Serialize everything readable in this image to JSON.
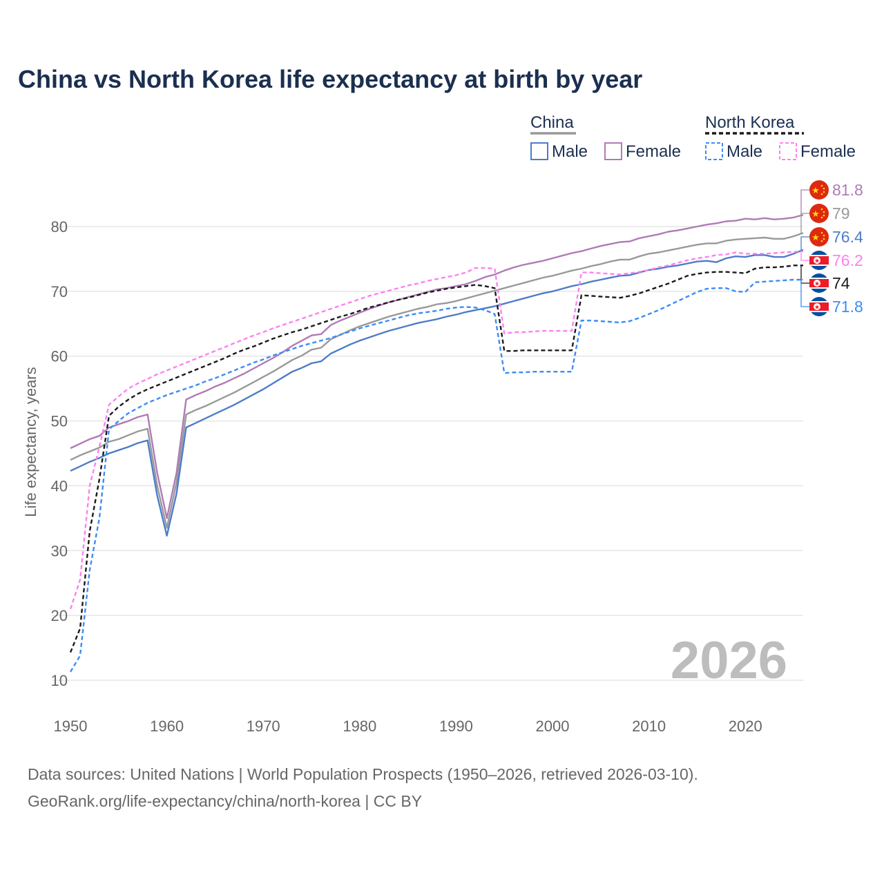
{
  "title": "China vs North Korea life expectancy at birth by year",
  "watermark_year": "2026",
  "sources": [
    "Data sources: United Nations | World Population Prospects (1950–2026, retrieved 2026-03-10).",
    "GeoRank.org/life-expectancy/china/north-korea | CC BY"
  ],
  "legend": {
    "group1": "China",
    "group2": "North Korea",
    "male": "Male",
    "female": "Female"
  },
  "chart_data": {
    "type": "line",
    "title": "China vs North Korea life expectancy at birth by year",
    "xlabel": "",
    "ylabel": "Life expectancy, years",
    "xlim": [
      1950,
      2026
    ],
    "ylim": [
      10,
      85
    ],
    "xticks": [
      "1950",
      "1960",
      "1970",
      "1980",
      "1990",
      "2000",
      "2010",
      "2020"
    ],
    "yticks": [
      "10",
      "20",
      "30",
      "40",
      "50",
      "60",
      "70",
      "80"
    ],
    "grid": true,
    "x_start": 1950,
    "series": [
      {
        "name": "China Female",
        "color": "#b07ab7",
        "dash": false,
        "end_label": "81.8",
        "flag": "china",
        "values": [
          45.8,
          46.5,
          47.2,
          47.7,
          49,
          49.5,
          50,
          50.6,
          51,
          42,
          35,
          42,
          53.3,
          54,
          54.6,
          55.3,
          55.9,
          56.6,
          57.3,
          58.1,
          58.9,
          59.7,
          60.6,
          61.6,
          62.4,
          63.2,
          63.4,
          64.8,
          65.5,
          66.1,
          66.7,
          67.3,
          67.8,
          68.3,
          68.7,
          69.1,
          69.5,
          69.9,
          70.3,
          70.5,
          70.8,
          71.1,
          71.6,
          72.2,
          72.6,
          73.2,
          73.7,
          74.1,
          74.4,
          74.7,
          75.1,
          75.5,
          75.9,
          76.2,
          76.6,
          77,
          77.3,
          77.6,
          77.7,
          78.2,
          78.5,
          78.8,
          79.2,
          79.4,
          79.7,
          80,
          80.3,
          80.5,
          80.8,
          80.9,
          81.2,
          81.1,
          81.3,
          81.1,
          81.2,
          81.4,
          81.8
        ]
      },
      {
        "name": "China",
        "color": "#999999",
        "dash": false,
        "end_label": "79",
        "flag": "china",
        "values": [
          44,
          44.7,
          45.3,
          45.9,
          46.8,
          47.2,
          47.8,
          48.4,
          48.8,
          40,
          33.5,
          40.5,
          51,
          51.7,
          52.3,
          53,
          53.7,
          54.4,
          55.2,
          56,
          56.8,
          57.6,
          58.5,
          59.4,
          60.1,
          61,
          61.3,
          62.6,
          63.3,
          64,
          64.6,
          65.1,
          65.6,
          66.1,
          66.5,
          66.9,
          67.3,
          67.6,
          68,
          68.2,
          68.5,
          68.9,
          69.3,
          69.7,
          70.1,
          70.5,
          70.9,
          71.3,
          71.7,
          72.1,
          72.4,
          72.8,
          73.2,
          73.5,
          73.9,
          74.2,
          74.6,
          74.9,
          74.9,
          75.4,
          75.8,
          76,
          76.3,
          76.6,
          76.9,
          77.2,
          77.4,
          77.4,
          77.8,
          78,
          78.1,
          78.2,
          78.3,
          78.1,
          78.1,
          78.5,
          79
        ]
      },
      {
        "name": "China Male",
        "color": "#4d7cc9",
        "dash": false,
        "end_label": "76.4",
        "flag": "china",
        "values": [
          42.3,
          43,
          43.7,
          44.3,
          45,
          45.5,
          46,
          46.6,
          47,
          38.5,
          32.3,
          38.8,
          49,
          49.7,
          50.4,
          51.1,
          51.8,
          52.5,
          53.3,
          54.1,
          54.9,
          55.8,
          56.7,
          57.6,
          58.2,
          58.9,
          59.2,
          60.4,
          61.1,
          61.8,
          62.4,
          62.9,
          63.4,
          63.9,
          64.3,
          64.7,
          65.1,
          65.4,
          65.7,
          66.1,
          66.4,
          66.8,
          67.1,
          67.4,
          67.7,
          68.1,
          68.5,
          68.9,
          69.3,
          69.7,
          70,
          70.4,
          70.8,
          71.1,
          71.5,
          71.8,
          72.1,
          72.4,
          72.5,
          72.9,
          73.3,
          73.5,
          73.8,
          74,
          74.3,
          74.6,
          74.7,
          74.5,
          75.1,
          75.4,
          75.3,
          75.6,
          75.6,
          75.3,
          75.3,
          75.8,
          76.4
        ]
      },
      {
        "name": "North Korea Female",
        "color": "#ff80f0",
        "dash": true,
        "end_label": "76.2",
        "flag": "nk",
        "values": [
          21,
          25.5,
          40,
          46,
          52.5,
          53.8,
          55,
          55.8,
          56.5,
          57.2,
          57.8,
          58.4,
          59,
          59.6,
          60.2,
          60.8,
          61.4,
          62,
          62.6,
          63.2,
          63.7,
          64.3,
          64.8,
          65.3,
          65.8,
          66.3,
          66.8,
          67.3,
          67.8,
          68.3,
          68.8,
          69.3,
          69.7,
          70.1,
          70.5,
          70.9,
          71.2,
          71.6,
          71.9,
          72.2,
          72.5,
          72.9,
          73.6,
          73.6,
          73.5,
          63.5,
          63.7,
          63.7,
          63.8,
          63.9,
          63.9,
          63.9,
          63.9,
          72.9,
          72.9,
          72.8,
          72.7,
          72.6,
          72.8,
          73,
          73.3,
          73.7,
          74,
          74.4,
          74.8,
          75.1,
          75.3,
          75.6,
          75.7,
          76,
          75.8,
          75.8,
          75.8,
          75.9,
          76,
          76.1,
          76.2
        ]
      },
      {
        "name": "North Korea",
        "color": "#1a1a1a",
        "dash": true,
        "end_label": "74",
        "flag": "nk",
        "values": [
          14.3,
          18,
          33,
          41,
          50.8,
          52.2,
          53.3,
          54.2,
          54.9,
          55.5,
          56.1,
          56.7,
          57.3,
          57.9,
          58.5,
          59.1,
          59.7,
          60.4,
          61,
          61.5,
          62.1,
          62.7,
          63.2,
          63.7,
          64.1,
          64.6,
          65.1,
          65.6,
          66.1,
          66.5,
          67,
          67.5,
          67.9,
          68.3,
          68.7,
          69,
          69.4,
          69.8,
          70.1,
          70.4,
          70.6,
          70.8,
          71,
          70.8,
          70.5,
          60.8,
          60.8,
          60.9,
          60.9,
          60.9,
          60.9,
          60.9,
          60.9,
          69.4,
          69.3,
          69.2,
          69.1,
          69,
          69.3,
          69.7,
          70.2,
          70.7,
          71.2,
          71.8,
          72.4,
          72.7,
          72.9,
          73,
          73,
          72.9,
          72.8,
          73.5,
          73.7,
          73.7,
          73.8,
          74,
          74
        ]
      },
      {
        "name": "North Korea Male",
        "color": "#3b8cf5",
        "dash": true,
        "end_label": "71.8",
        "flag": "nk",
        "values": [
          11.3,
          13.8,
          27,
          35,
          48.7,
          50,
          51.2,
          52,
          52.8,
          53.4,
          54,
          54.5,
          55,
          55.5,
          56.1,
          56.6,
          57.2,
          57.8,
          58.4,
          59,
          59.5,
          60.1,
          60.6,
          61.1,
          61.6,
          62,
          62.4,
          62.8,
          63.3,
          63.8,
          64.3,
          64.7,
          65.1,
          65.5,
          65.9,
          66.3,
          66.6,
          66.8,
          67,
          67.3,
          67.5,
          67.6,
          67.5,
          67.1,
          66.5,
          57.4,
          57.5,
          57.5,
          57.6,
          57.6,
          57.6,
          57.6,
          57.6,
          65.5,
          65.5,
          65.4,
          65.3,
          65.2,
          65.4,
          65.9,
          66.5,
          67.1,
          67.8,
          68.5,
          69.2,
          69.9,
          70.4,
          70.5,
          70.5,
          70.0,
          69.9,
          71.4,
          71.5,
          71.6,
          71.7,
          71.8,
          71.8
        ]
      }
    ]
  }
}
